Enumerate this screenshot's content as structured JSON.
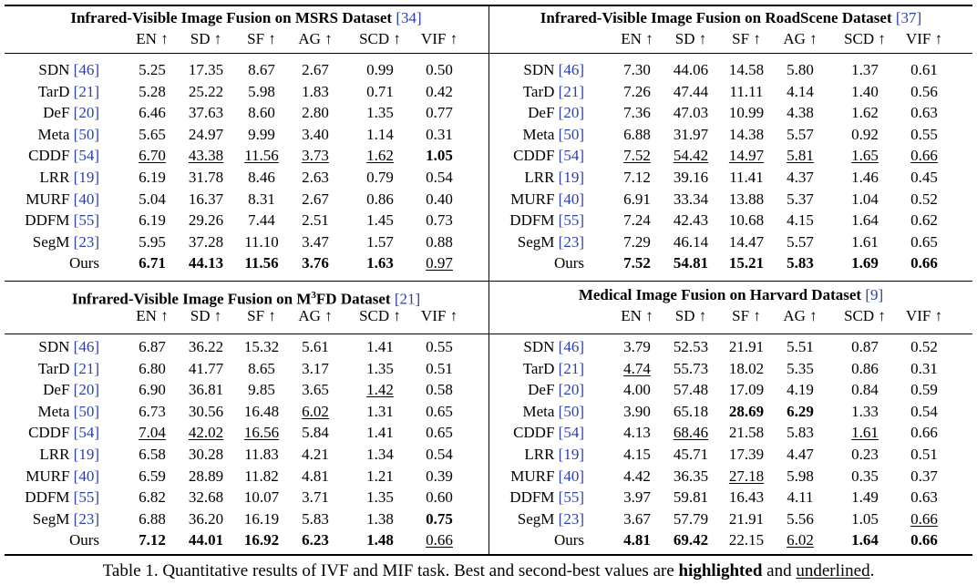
{
  "metrics": [
    "EN ↑",
    "SD ↑",
    "SF ↑",
    "AG ↑",
    "SCD ↑",
    "VIF ↑"
  ],
  "panels": [
    {
      "title_main": "Infrared-Visible Image Fusion on MSRS Dataset",
      "title_sup": "",
      "title_tail": "",
      "title_ref": "[34]",
      "rows": [
        {
          "method": "SDN",
          "ref": "[46]",
          "values": [
            "5.25",
            "17.35",
            "8.67",
            "2.67",
            "0.99",
            "0.50"
          ],
          "styles": [
            "",
            "",
            "",
            "",
            "",
            ""
          ]
        },
        {
          "method": "TarD",
          "ref": "[21]",
          "values": [
            "5.28",
            "25.22",
            "5.98",
            "1.83",
            "0.71",
            "0.42"
          ],
          "styles": [
            "",
            "",
            "",
            "",
            "",
            ""
          ]
        },
        {
          "method": "DeF",
          "ref": "[20]",
          "values": [
            "6.46",
            "37.63",
            "8.60",
            "2.80",
            "1.35",
            "0.77"
          ],
          "styles": [
            "",
            "",
            "",
            "",
            "",
            ""
          ]
        },
        {
          "method": "Meta",
          "ref": "[50]",
          "values": [
            "5.65",
            "24.97",
            "9.99",
            "3.40",
            "1.14",
            "0.31"
          ],
          "styles": [
            "",
            "",
            "",
            "",
            "",
            ""
          ]
        },
        {
          "method": "CDDF",
          "ref": "[54]",
          "values": [
            "6.70",
            "43.38",
            "11.56",
            "3.73",
            "1.62",
            "1.05"
          ],
          "styles": [
            "u",
            "u",
            "u",
            "u",
            "u",
            "b"
          ]
        },
        {
          "method": "LRR",
          "ref": "[19]",
          "values": [
            "6.19",
            "31.78",
            "8.46",
            "2.63",
            "0.79",
            "0.54"
          ],
          "styles": [
            "",
            "",
            "",
            "",
            "",
            ""
          ]
        },
        {
          "method": "MURF",
          "ref": "[40]",
          "values": [
            "5.04",
            "16.37",
            "8.31",
            "2.67",
            "0.86",
            "0.40"
          ],
          "styles": [
            "",
            "",
            "",
            "",
            "",
            ""
          ]
        },
        {
          "method": "DDFM",
          "ref": "[55]",
          "values": [
            "6.19",
            "29.26",
            "7.44",
            "2.51",
            "1.45",
            "0.73"
          ],
          "styles": [
            "",
            "",
            "",
            "",
            "",
            ""
          ]
        },
        {
          "method": "SegM",
          "ref": "[23]",
          "values": [
            "5.95",
            "37.28",
            "11.10",
            "3.47",
            "1.57",
            "0.88"
          ],
          "styles": [
            "",
            "",
            "",
            "",
            "",
            ""
          ]
        },
        {
          "method": "Ours",
          "ref": "",
          "values": [
            "6.71",
            "44.13",
            "11.56",
            "3.76",
            "1.63",
            "0.97"
          ],
          "styles": [
            "b",
            "b",
            "b",
            "b",
            "b",
            "u"
          ]
        }
      ]
    },
    {
      "title_main": "Infrared-Visible Image Fusion on RoadScene Dataset",
      "title_sup": "",
      "title_tail": "",
      "title_ref": "[37]",
      "rows": [
        {
          "method": "SDN",
          "ref": "[46]",
          "values": [
            "7.30",
            "44.06",
            "14.58",
            "5.80",
            "1.37",
            "0.61"
          ],
          "styles": [
            "",
            "",
            "",
            "",
            "",
            ""
          ]
        },
        {
          "method": "TarD",
          "ref": "[21]",
          "values": [
            "7.26",
            "47.44",
            "11.11",
            "4.14",
            "1.40",
            "0.56"
          ],
          "styles": [
            "",
            "",
            "",
            "",
            "",
            ""
          ]
        },
        {
          "method": "DeF",
          "ref": "[20]",
          "values": [
            "7.36",
            "47.03",
            "10.99",
            "4.38",
            "1.62",
            "0.63"
          ],
          "styles": [
            "",
            "",
            "",
            "",
            "",
            ""
          ]
        },
        {
          "method": "Meta",
          "ref": "[50]",
          "values": [
            "6.88",
            "31.97",
            "14.38",
            "5.57",
            "0.92",
            "0.55"
          ],
          "styles": [
            "",
            "",
            "",
            "",
            "",
            ""
          ]
        },
        {
          "method": "CDDF",
          "ref": "[54]",
          "values": [
            "7.52",
            "54.42",
            "14.97",
            "5.81",
            "1.65",
            "0.66"
          ],
          "styles": [
            "u",
            "u",
            "u",
            "u",
            "u",
            "u"
          ]
        },
        {
          "method": "LRR",
          "ref": "[19]",
          "values": [
            "7.12",
            "39.16",
            "11.41",
            "4.37",
            "1.46",
            "0.45"
          ],
          "styles": [
            "",
            "",
            "",
            "",
            "",
            ""
          ]
        },
        {
          "method": "MURF",
          "ref": "[40]",
          "values": [
            "6.91",
            "33.34",
            "13.88",
            "5.37",
            "1.04",
            "0.52"
          ],
          "styles": [
            "",
            "",
            "",
            "",
            "",
            ""
          ]
        },
        {
          "method": "DDFM",
          "ref": "[55]",
          "values": [
            "7.24",
            "42.43",
            "10.68",
            "4.15",
            "1.64",
            "0.62"
          ],
          "styles": [
            "",
            "",
            "",
            "",
            "",
            ""
          ]
        },
        {
          "method": "SegM",
          "ref": "[23]",
          "values": [
            "7.29",
            "46.14",
            "14.47",
            "5.57",
            "1.61",
            "0.65"
          ],
          "styles": [
            "",
            "",
            "",
            "",
            "",
            ""
          ]
        },
        {
          "method": "Ours",
          "ref": "",
          "values": [
            "7.52",
            "54.81",
            "15.21",
            "5.83",
            "1.69",
            "0.66"
          ],
          "styles": [
            "b",
            "b",
            "b",
            "b",
            "b",
            "b"
          ]
        }
      ]
    },
    {
      "title_main": "Infrared-Visible Image Fusion on M",
      "title_sup": "3",
      "title_tail": "FD Dataset",
      "title_ref": "[21]",
      "rows": [
        {
          "method": "SDN",
          "ref": "[46]",
          "values": [
            "6.87",
            "36.22",
            "15.32",
            "5.61",
            "1.41",
            "0.55"
          ],
          "styles": [
            "",
            "",
            "",
            "",
            "",
            ""
          ]
        },
        {
          "method": "TarD",
          "ref": "[21]",
          "values": [
            "6.80",
            "41.77",
            "8.65",
            "3.17",
            "1.35",
            "0.51"
          ],
          "styles": [
            "",
            "",
            "",
            "",
            "",
            ""
          ]
        },
        {
          "method": "DeF",
          "ref": "[20]",
          "values": [
            "6.90",
            "36.81",
            "9.85",
            "3.65",
            "1.42",
            "0.58"
          ],
          "styles": [
            "",
            "",
            "",
            "",
            "u",
            ""
          ]
        },
        {
          "method": "Meta",
          "ref": "[50]",
          "values": [
            "6.73",
            "30.56",
            "16.48",
            "6.02",
            "1.31",
            "0.65"
          ],
          "styles": [
            "",
            "",
            "",
            "u",
            "",
            ""
          ]
        },
        {
          "method": "CDDF",
          "ref": "[54]",
          "values": [
            "7.04",
            "42.02",
            "16.56",
            "5.84",
            "1.41",
            "0.65"
          ],
          "styles": [
            "u",
            "u",
            "u",
            "",
            "",
            ""
          ]
        },
        {
          "method": "LRR",
          "ref": "[19]",
          "values": [
            "6.58",
            "30.28",
            "11.83",
            "4.21",
            "1.34",
            "0.54"
          ],
          "styles": [
            "",
            "",
            "",
            "",
            "",
            ""
          ]
        },
        {
          "method": "MURF",
          "ref": "[40]",
          "values": [
            "6.59",
            "28.89",
            "11.82",
            "4.81",
            "1.21",
            "0.39"
          ],
          "styles": [
            "",
            "",
            "",
            "",
            "",
            ""
          ]
        },
        {
          "method": "DDFM",
          "ref": "[55]",
          "values": [
            "6.82",
            "32.68",
            "10.07",
            "3.71",
            "1.35",
            "0.60"
          ],
          "styles": [
            "",
            "",
            "",
            "",
            "",
            ""
          ]
        },
        {
          "method": "SegM",
          "ref": "[23]",
          "values": [
            "6.88",
            "36.20",
            "16.19",
            "5.83",
            "1.38",
            "0.75"
          ],
          "styles": [
            "",
            "",
            "",
            "",
            "",
            "b"
          ]
        },
        {
          "method": "Ours",
          "ref": "",
          "values": [
            "7.12",
            "44.01",
            "16.92",
            "6.23",
            "1.48",
            "0.66"
          ],
          "styles": [
            "b",
            "b",
            "b",
            "b",
            "b",
            "u"
          ]
        }
      ]
    },
    {
      "title_main": "Medical Image Fusion on Harvard Dataset",
      "title_sup": "",
      "title_tail": "",
      "title_ref": "[9]",
      "rows": [
        {
          "method": "SDN",
          "ref": "[46]",
          "values": [
            "3.79",
            "52.53",
            "21.91",
            "5.51",
            "0.87",
            "0.52"
          ],
          "styles": [
            "",
            "",
            "",
            "",
            "",
            ""
          ]
        },
        {
          "method": "TarD",
          "ref": "[21]",
          "values": [
            "4.74",
            "55.73",
            "18.02",
            "5.35",
            "0.86",
            "0.31"
          ],
          "styles": [
            "u",
            "",
            "",
            "",
            "",
            ""
          ]
        },
        {
          "method": "DeF",
          "ref": "[20]",
          "values": [
            "4.00",
            "57.48",
            "17.09",
            "4.19",
            "0.84",
            "0.59"
          ],
          "styles": [
            "",
            "",
            "",
            "",
            "",
            ""
          ]
        },
        {
          "method": "Meta",
          "ref": "[50]",
          "values": [
            "3.90",
            "65.18",
            "28.69",
            "6.29",
            "1.33",
            "0.54"
          ],
          "styles": [
            "",
            "",
            "b",
            "b",
            "",
            ""
          ]
        },
        {
          "method": "CDDF",
          "ref": "[54]",
          "values": [
            "4.13",
            "68.46",
            "21.58",
            "5.83",
            "1.61",
            "0.66"
          ],
          "styles": [
            "",
            "u",
            "",
            "",
            "u",
            ""
          ]
        },
        {
          "method": "LRR",
          "ref": "[19]",
          "values": [
            "4.15",
            "45.71",
            "17.39",
            "4.47",
            "0.23",
            "0.51"
          ],
          "styles": [
            "",
            "",
            "",
            "",
            "",
            ""
          ]
        },
        {
          "method": "MURF",
          "ref": "[40]",
          "values": [
            "4.42",
            "36.35",
            "27.18",
            "5.98",
            "0.35",
            "0.37"
          ],
          "styles": [
            "",
            "",
            "u",
            "",
            "",
            ""
          ]
        },
        {
          "method": "DDFM",
          "ref": "[55]",
          "values": [
            "3.97",
            "59.81",
            "16.43",
            "4.11",
            "1.49",
            "0.63"
          ],
          "styles": [
            "",
            "",
            "",
            "",
            "",
            ""
          ]
        },
        {
          "method": "SegM",
          "ref": "[23]",
          "values": [
            "3.67",
            "57.79",
            "21.91",
            "5.56",
            "1.05",
            "0.66"
          ],
          "styles": [
            "",
            "",
            "",
            "",
            "",
            "u"
          ]
        },
        {
          "method": "Ours",
          "ref": "",
          "values": [
            "4.81",
            "69.42",
            "22.15",
            "6.02",
            "1.64",
            "0.66"
          ],
          "styles": [
            "b",
            "b",
            "",
            "u",
            "b",
            "b"
          ]
        }
      ]
    }
  ],
  "caption": {
    "prefix": "Table 1. Quantitative results of IVF and MIF task. Best and second-best values are ",
    "bold_word": "highlighted",
    "middle": " and ",
    "underline_word": "underlined",
    "suffix": "."
  }
}
